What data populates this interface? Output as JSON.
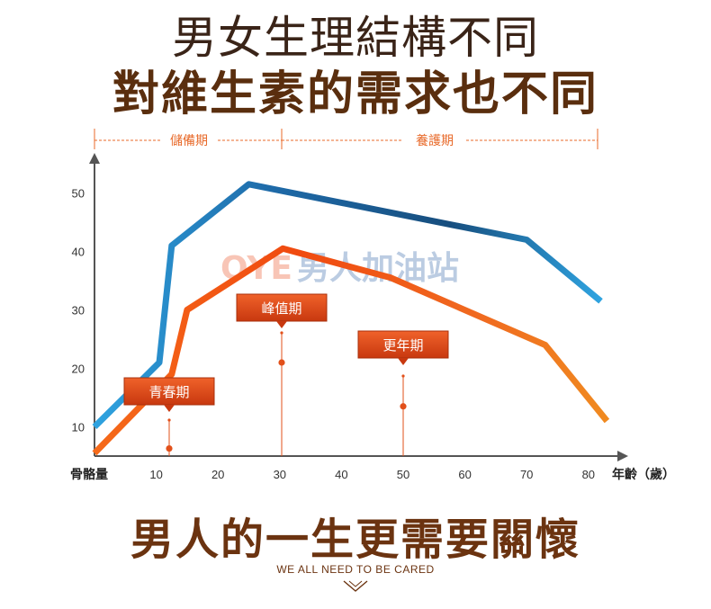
{
  "header": {
    "title_line1": "男女生理結構不同",
    "title_line2": "對維生素的需求也不同"
  },
  "footer": {
    "title": "男人的一生更需要關懷",
    "subtitle": "WE ALL NEED TO BE CARED"
  },
  "watermark": {
    "logo_text": "OYE",
    "text": "男人加油站"
  },
  "chart_data": {
    "type": "line",
    "xlabel": "年齡（歲）",
    "ylabel": "骨骼量",
    "xlim": [
      0,
      85
    ],
    "ylim": [
      5,
      55
    ],
    "x_ticks": [
      "10",
      "20",
      "30",
      "40",
      "50",
      "60",
      "70",
      "80"
    ],
    "y_ticks": [
      "10",
      "20",
      "30",
      "40",
      "50"
    ],
    "phases": [
      {
        "label": "儲備期",
        "x_start": 0,
        "x_end": 30
      },
      {
        "label": "養護期",
        "x_start": 30,
        "x_end": 82
      }
    ],
    "series": [
      {
        "color": "#1a5a8a",
        "points": [
          [
            0,
            10
          ],
          [
            10.5,
            21
          ],
          [
            12.5,
            41
          ],
          [
            25,
            51.5
          ],
          [
            70,
            42
          ],
          [
            82,
            31.5
          ]
        ]
      },
      {
        "color": "#f05a14",
        "points": [
          [
            0,
            5.5
          ],
          [
            12.5,
            19
          ],
          [
            15,
            30
          ],
          [
            30.5,
            40.5
          ],
          [
            48,
            35.5
          ],
          [
            73,
            24
          ],
          [
            83,
            11
          ]
        ]
      }
    ],
    "annotations": [
      {
        "label": "青春期",
        "x": 12,
        "y": 6.3
      },
      {
        "label": "峰值期",
        "x": 30,
        "y": 21
      },
      {
        "label": "更年期",
        "x": 50,
        "y": 13.5
      }
    ],
    "colors": {
      "phase": "#e86a2a",
      "callout": "#e2501a",
      "axis": "#555555"
    }
  }
}
